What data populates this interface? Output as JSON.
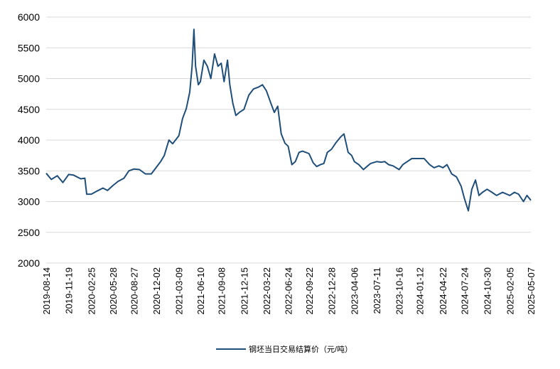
{
  "chart_data": {
    "type": "line",
    "title": "",
    "xlabel": "",
    "ylabel": "",
    "ylim": [
      2000,
      6000
    ],
    "yticks": [
      2000,
      2500,
      3000,
      3500,
      4000,
      4500,
      5000,
      5500,
      6000
    ],
    "grid": "horizontal",
    "legend_position": "bottom",
    "line_color": "#1f4e79",
    "x_tick_labels": [
      "2019-08-14",
      "2019-11-19",
      "2020-02-25",
      "2020-05-28",
      "2020-08-27",
      "2020-12-02",
      "2021-03-09",
      "2021-06-10",
      "2021-09-08",
      "2021-12-15",
      "2022-03-22",
      "2022-06-24",
      "2022-09-22",
      "2022-12-28",
      "2023-04-06",
      "2023-07-11",
      "2023-10-16",
      "2024-01-12",
      "2024-04-22",
      "2024-07-24",
      "2024-10-30",
      "2025-02-05",
      "2025-05-07"
    ],
    "series": [
      {
        "name": "钢坯当日交易结算价（元/吨）",
        "x": [
          "2019-08-14",
          "2019-09-05",
          "2019-10-01",
          "2019-10-25",
          "2019-11-19",
          "2019-12-10",
          "2020-01-10",
          "2020-01-28",
          "2020-02-05",
          "2020-02-25",
          "2020-03-20",
          "2020-04-15",
          "2020-05-05",
          "2020-05-28",
          "2020-06-20",
          "2020-07-15",
          "2020-08-05",
          "2020-08-27",
          "2020-09-20",
          "2020-10-15",
          "2020-11-10",
          "2020-12-02",
          "2020-12-20",
          "2021-01-05",
          "2021-01-25",
          "2021-02-10",
          "2021-03-09",
          "2021-03-25",
          "2021-04-10",
          "2021-04-25",
          "2021-05-05",
          "2021-05-13",
          "2021-05-20",
          "2021-06-01",
          "2021-06-10",
          "2021-06-25",
          "2021-07-10",
          "2021-07-25",
          "2021-08-10",
          "2021-08-25",
          "2021-09-08",
          "2021-09-20",
          "2021-10-05",
          "2021-10-15",
          "2021-10-28",
          "2021-11-10",
          "2021-11-25",
          "2021-12-15",
          "2022-01-05",
          "2022-01-25",
          "2022-02-15",
          "2022-03-05",
          "2022-03-22",
          "2022-04-10",
          "2022-04-25",
          "2022-05-10",
          "2022-05-25",
          "2022-06-10",
          "2022-06-24",
          "2022-07-10",
          "2022-07-25",
          "2022-08-10",
          "2022-08-25",
          "2022-09-22",
          "2022-10-10",
          "2022-10-25",
          "2022-11-10",
          "2022-11-25",
          "2022-12-10",
          "2022-12-28",
          "2023-01-15",
          "2023-02-05",
          "2023-02-20",
          "2023-03-10",
          "2023-03-25",
          "2023-04-06",
          "2023-04-25",
          "2023-05-15",
          "2023-05-30",
          "2023-06-15",
          "2023-07-11",
          "2023-07-30",
          "2023-08-15",
          "2023-09-01",
          "2023-09-20",
          "2023-10-16",
          "2023-11-01",
          "2023-11-20",
          "2023-12-10",
          "2024-01-12",
          "2024-02-01",
          "2024-02-25",
          "2024-03-15",
          "2024-04-05",
          "2024-04-22",
          "2024-05-10",
          "2024-05-30",
          "2024-06-20",
          "2024-07-10",
          "2024-07-24",
          "2024-08-10",
          "2024-08-25",
          "2024-09-10",
          "2024-09-25",
          "2024-10-10",
          "2024-10-30",
          "2024-11-20",
          "2024-12-10",
          "2025-01-05",
          "2025-02-05",
          "2025-02-25",
          "2025-03-15",
          "2025-04-05",
          "2025-04-20",
          "2025-05-07"
        ],
        "values": [
          3460,
          3360,
          3420,
          3310,
          3440,
          3430,
          3370,
          3380,
          3120,
          3120,
          3170,
          3220,
          3180,
          3260,
          3330,
          3380,
          3500,
          3530,
          3520,
          3450,
          3450,
          3560,
          3650,
          3750,
          4000,
          3940,
          4070,
          4350,
          4510,
          4780,
          5200,
          5800,
          5200,
          4900,
          4950,
          5300,
          5200,
          5000,
          5400,
          5200,
          5250,
          4950,
          5300,
          4900,
          4600,
          4400,
          4450,
          4500,
          4730,
          4830,
          4860,
          4900,
          4800,
          4600,
          4450,
          4550,
          4100,
          3950,
          3900,
          3600,
          3650,
          3800,
          3820,
          3780,
          3630,
          3570,
          3600,
          3620,
          3800,
          3850,
          3950,
          4050,
          4100,
          3800,
          3750,
          3650,
          3600,
          3520,
          3570,
          3620,
          3650,
          3640,
          3650,
          3600,
          3580,
          3520,
          3600,
          3650,
          3700,
          3700,
          3700,
          3600,
          3550,
          3580,
          3550,
          3600,
          3450,
          3400,
          3250,
          3050,
          2850,
          3200,
          3350,
          3100,
          3150,
          3200,
          3150,
          3100,
          3150,
          3100,
          3150,
          3120,
          3000,
          3100,
          3020
        ]
      }
    ]
  }
}
